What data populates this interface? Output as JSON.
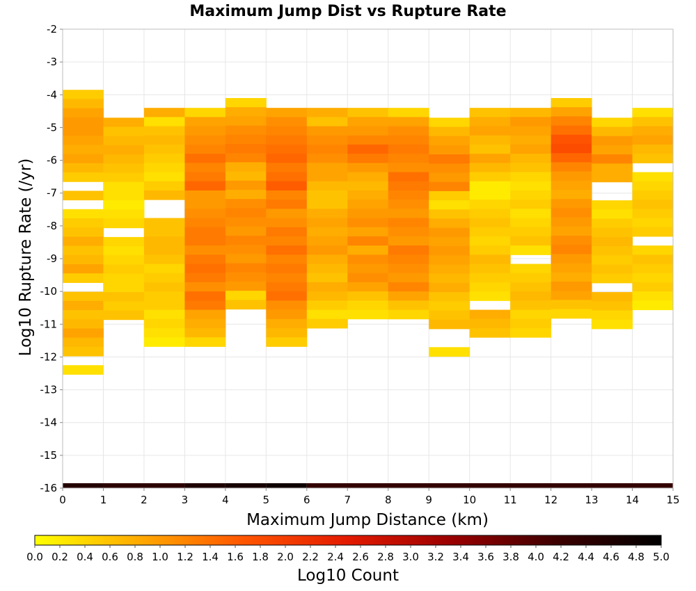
{
  "chart_data": {
    "type": "heatmap",
    "title": "Maximum Jump Dist vs Rupture Rate",
    "xlabel": "Maximum Jump Distance (km)",
    "ylabel": "Log10 Rupture Rate (/yr)",
    "colorbar_label": "Log10 Count",
    "xlim": [
      0,
      15
    ],
    "ylim": [
      -16,
      -2
    ],
    "x_ticks": [
      "0",
      "1",
      "2",
      "3",
      "4",
      "5",
      "6",
      "7",
      "8",
      "9",
      "10",
      "11",
      "12",
      "13",
      "14",
      "15"
    ],
    "y_ticks": [
      "-2",
      "-3",
      "-4",
      "-5",
      "-6",
      "-7",
      "-8",
      "-9",
      "-10",
      "-11",
      "-12",
      "-13",
      "-14",
      "-15",
      "-16"
    ],
    "colorbar_range": [
      0,
      5
    ],
    "colorbar_ticks": [
      "0.0",
      "0.2",
      "0.4",
      "0.6",
      "0.8",
      "1.0",
      "1.2",
      "1.4",
      "1.6",
      "1.8",
      "2.0",
      "2.2",
      "2.4",
      "2.6",
      "2.8",
      "3.0",
      "3.2",
      "3.4",
      "3.6",
      "3.8",
      "4.0",
      "4.2",
      "4.4",
      "4.6",
      "4.8",
      "5.0"
    ],
    "colormap": [
      "#ffff00",
      "#ffaa00",
      "#ff5500",
      "#e31a00",
      "#990000",
      "#3d0000",
      "#000000"
    ],
    "grid": true,
    "bin_width_x": 1,
    "bin_height_y": 0.28,
    "column_bins": [
      {
        "x0": 0,
        "y_top": -3.85,
        "values": [
          0.5,
          0.7,
          0.9,
          1.0,
          1.0,
          0.9,
          0.8,
          0.9,
          0.7,
          0.5,
          null,
          0.6,
          null,
          0.3,
          0.5,
          0.6,
          0.8,
          0.6,
          0.7,
          0.9,
          0.5,
          null,
          0.6,
          0.8,
          0.6,
          0.7,
          0.9,
          0.7,
          0.6,
          null,
          0.3
        ]
      },
      {
        "x0": 1,
        "y_top": -4.7,
        "values": [
          0.8,
          0.6,
          0.7,
          0.8,
          0.7,
          0.6,
          0.5,
          0.3,
          0.3,
          0.2,
          0.3,
          0.4,
          null,
          0.4,
          0.3,
          0.4,
          0.5,
          0.4,
          0.4,
          0.6,
          0.5,
          0.6
        ]
      },
      {
        "x0": 2,
        "y_top": -4.4,
        "values": [
          0.8,
          0.3,
          0.6,
          0.7,
          0.6,
          0.5,
          0.4,
          0.3,
          0.5,
          0.7,
          null,
          null,
          0.6,
          0.6,
          0.7,
          0.7,
          0.6,
          0.4,
          0.5,
          0.6,
          0.5,
          0.5,
          0.3,
          0.4,
          0.3,
          0.2
        ]
      },
      {
        "x0": 3,
        "y_top": -4.4,
        "values": [
          0.4,
          0.9,
          1.0,
          1.1,
          1.2,
          1.4,
          1.2,
          1.3,
          1.5,
          1.0,
          1.0,
          1.1,
          1.2,
          1.3,
          1.3,
          1.1,
          1.3,
          1.4,
          1.3,
          1.1,
          1.4,
          1.3,
          0.9,
          0.8,
          0.7,
          0.4
        ]
      },
      {
        "x0": 4,
        "y_top": -4.1,
        "values": [
          0.4,
          0.8,
          0.9,
          1.1,
          1.2,
          1.3,
          1.2,
          0.8,
          0.7,
          1.0,
          0.8,
          1.1,
          1.2,
          1.1,
          1.0,
          1.2,
          1.1,
          1.0,
          1.2,
          1.1,
          1.0,
          0.4,
          0.6
        ]
      },
      {
        "x0": 5,
        "y_top": -4.4,
        "values": [
          0.9,
          1.1,
          1.2,
          1.3,
          1.4,
          1.5,
          1.3,
          1.4,
          1.6,
          1.2,
          1.3,
          1.0,
          1.1,
          1.3,
          1.2,
          1.4,
          1.2,
          1.3,
          1.2,
          1.3,
          1.4,
          1.1,
          1.0,
          0.8,
          0.7,
          0.5
        ]
      },
      {
        "x0": 6,
        "y_top": -4.4,
        "values": [
          0.8,
          0.6,
          1.0,
          1.1,
          1.2,
          1.1,
          0.9,
          0.9,
          0.7,
          0.6,
          0.6,
          0.8,
          0.9,
          0.8,
          0.9,
          1.0,
          0.8,
          0.7,
          0.6,
          0.8,
          0.7,
          0.5,
          0.3,
          0.5
        ]
      },
      {
        "x0": 7,
        "y_top": -4.4,
        "values": [
          0.6,
          0.9,
          1.0,
          1.2,
          1.5,
          1.3,
          1.0,
          0.8,
          0.7,
          0.8,
          0.9,
          1.0,
          1.1,
          0.9,
          1.2,
          0.8,
          1.1,
          1.0,
          1.1,
          0.9,
          0.6,
          0.4,
          0.3
        ]
      },
      {
        "x0": 8,
        "y_top": -4.4,
        "values": [
          0.4,
          0.9,
          1.1,
          1.2,
          1.3,
          1.2,
          1.1,
          1.4,
          1.3,
          1.2,
          1.1,
          1.0,
          1.2,
          1.1,
          1.0,
          1.3,
          1.2,
          1.1,
          1.0,
          1.2,
          0.9,
          0.6,
          0.4
        ]
      },
      {
        "x0": 9,
        "y_top": -4.7,
        "values": [
          0.4,
          0.7,
          0.9,
          1.0,
          1.3,
          1.1,
          1.0,
          1.2,
          0.5,
          0.3,
          0.6,
          0.8,
          1.0,
          0.9,
          1.0,
          0.9,
          0.8,
          0.7,
          0.8,
          0.6,
          0.5,
          0.6,
          0.7,
          null,
          null,
          0.3
        ]
      },
      {
        "x0": 10,
        "y_top": -4.4,
        "values": [
          0.6,
          0.8,
          0.9,
          0.7,
          0.6,
          0.9,
          0.7,
          0.5,
          0.2,
          0.2,
          0.4,
          0.5,
          0.6,
          0.5,
          0.4,
          0.5,
          0.7,
          0.6,
          0.5,
          0.4,
          0.3,
          null,
          0.8,
          0.7,
          0.6
        ]
      },
      {
        "x0": 11,
        "y_top": -4.4,
        "values": [
          0.7,
          1.0,
          0.9,
          0.8,
          0.9,
          0.7,
          0.6,
          0.4,
          0.3,
          0.4,
          0.5,
          0.3,
          0.4,
          0.5,
          0.6,
          0.3,
          null,
          0.4,
          0.5,
          0.6,
          0.7,
          0.6,
          0.4,
          0.5,
          0.4
        ]
      },
      {
        "x0": 12,
        "y_top": -4.1,
        "values": [
          0.5,
          0.9,
          1.2,
          1.4,
          1.7,
          1.8,
          1.5,
          1.2,
          1.0,
          0.9,
          0.8,
          1.0,
          1.1,
          1.0,
          0.9,
          1.1,
          1.2,
          1.0,
          0.9,
          0.8,
          1.0,
          0.9,
          0.6,
          0.4
        ]
      },
      {
        "x0": 13,
        "y_top": -4.7,
        "values": [
          0.4,
          0.7,
          1.0,
          0.9,
          1.2,
          0.8,
          0.8,
          null,
          null,
          0.4,
          0.3,
          0.5,
          0.6,
          0.7,
          0.6,
          0.5,
          0.6,
          0.5,
          null,
          0.7,
          0.6,
          0.4,
          0.3
        ]
      },
      {
        "x0": 14,
        "y_top": -4.4,
        "values": [
          0.3,
          0.6,
          0.8,
          0.9,
          0.7,
          0.6,
          null,
          0.3,
          0.4,
          0.5,
          0.6,
          0.5,
          0.4,
          0.5,
          null,
          0.4,
          0.6,
          0.5,
          0.4,
          0.5,
          0.3,
          0.2
        ]
      }
    ],
    "bottom_row": {
      "y": -16,
      "segments": [
        {
          "x0": 0,
          "x1": 1,
          "value": 4.5
        },
        {
          "x0": 1,
          "x1": 3,
          "value": 4.4
        },
        {
          "x0": 3,
          "x1": 4,
          "value": 4.6
        },
        {
          "x0": 4,
          "x1": 5,
          "value": 4.7
        },
        {
          "x0": 5,
          "x1": 6,
          "value": 4.8
        },
        {
          "x0": 6,
          "x1": 15,
          "value": 4.3
        }
      ]
    }
  }
}
